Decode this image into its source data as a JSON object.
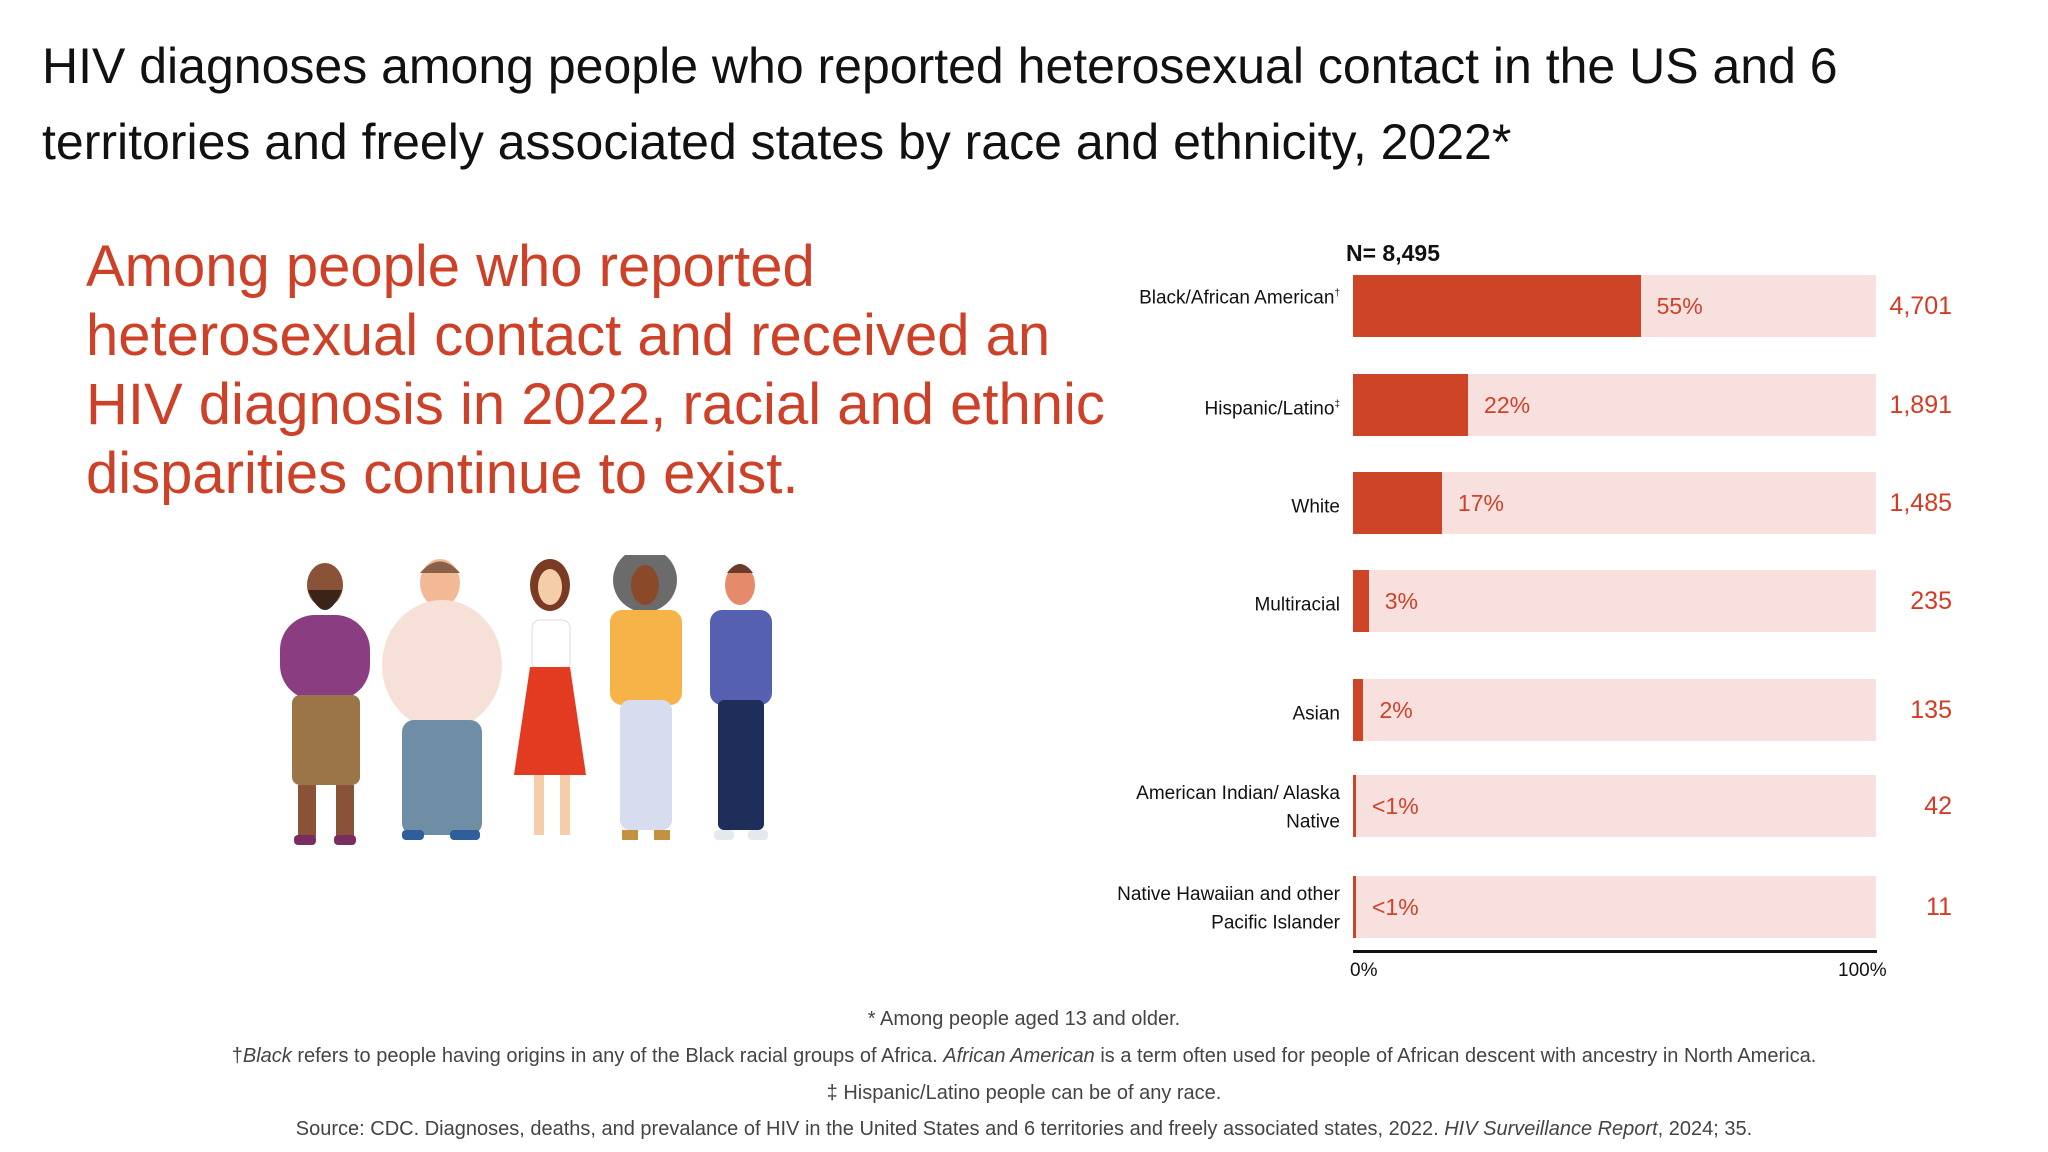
{
  "title": "HIV diagnoses among people who reported heterosexual contact in the US and 6 territories and freely associated states by race and ethnicity, 2022*",
  "lead": "Among people who reported heterosexual contact and received an HIV diagnosis in 2022, racial and ethnic disparities continue to exist.",
  "illustration": "five-diverse-people-illustration",
  "colors": {
    "accent": "#cd4427",
    "track": "#f8e0df",
    "text_red": "#d14127"
  },
  "chart_data": {
    "type": "bar",
    "orientation": "horizontal",
    "title": "N= 8,495",
    "categories": [
      {
        "label": "Black/African American",
        "mark": "†"
      },
      {
        "label": "Hispanic/Latino",
        "mark": "‡"
      },
      {
        "label": "White",
        "mark": ""
      },
      {
        "label": "Multiracial",
        "mark": ""
      },
      {
        "label": "Asian",
        "mark": ""
      },
      {
        "label": "American Indian/ Alaska Native",
        "mark": ""
      },
      {
        "label": "Native Hawaiian and other Pacific Islander",
        "mark": ""
      }
    ],
    "values": [
      55,
      22,
      17,
      3,
      2,
      0.5,
      0.2
    ],
    "pct_labels": [
      "55%",
      "22%",
      "17%",
      "3%",
      "2%",
      "<1%",
      "<1%"
    ],
    "counts": [
      "4,701",
      "1,891",
      "1,485",
      "235",
      "135",
      "42",
      "11"
    ],
    "xlim": [
      0,
      100
    ],
    "xticks": [
      "0%",
      "100%"
    ],
    "xlabel": "",
    "ylabel": ""
  },
  "footnotes": {
    "asterisk": "* Among people aged 13 and older.",
    "dagger_mark": "†",
    "dagger_i1": "Black",
    "dagger_t1": " refers to people having origins in any of the Black racial groups of Africa. ",
    "dagger_i2": "African American",
    "dagger_t2": " is a term often used for people of African descent with ancestry in North America.",
    "ddagger": "‡ Hispanic/Latino people can be of any race.",
    "source_t1": "Source: CDC. Diagnoses, deaths, and prevalance of HIV in the United States and 6 territories and freely associated states, 2022. ",
    "source_i": "HIV Surveillance Report",
    "source_t2": ", 2024; 35."
  }
}
